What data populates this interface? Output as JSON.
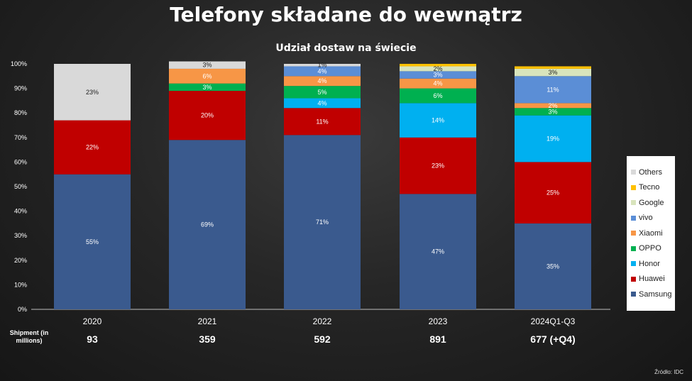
{
  "title": "Telefony składane do wewnątrz",
  "subtitle": "Udział dostaw na świecie",
  "shipment_label": "Shipment (in millions)",
  "source": "Źródło: IDC",
  "colors": {
    "Samsung": "#3a5a8e",
    "Huawei": "#c00000",
    "Honor": "#00b0f0",
    "OPPO": "#00b050",
    "Xiaomi": "#f79646",
    "vivo": "#5b8ed6",
    "Google": "#d8e4bc",
    "Tecno": "#ffc000",
    "Others": "#d9d9d9"
  },
  "chart_data": {
    "type": "bar",
    "stacked": true,
    "categories": [
      "2020",
      "2021",
      "2022",
      "2023",
      "2024Q1-Q3"
    ],
    "shipments": [
      "93",
      "359",
      "592",
      "891",
      "677 (+Q4)"
    ],
    "ylim": [
      0,
      100
    ],
    "y_ticks": [
      "0%",
      "10%",
      "20%",
      "30%",
      "40%",
      "50%",
      "60%",
      "70%",
      "80%",
      "90%",
      "100%"
    ],
    "legend_position": "right",
    "series": [
      {
        "name": "Samsung",
        "values": [
          55,
          69,
          71,
          47,
          35
        ],
        "labels": [
          "55%",
          "69%",
          "71%",
          "47%",
          "35%"
        ]
      },
      {
        "name": "Huawei",
        "values": [
          22,
          20,
          11,
          23,
          25
        ],
        "labels": [
          "22%",
          "20%",
          "11%",
          "23%",
          "25%"
        ]
      },
      {
        "name": "Honor",
        "values": [
          0,
          0,
          4,
          14,
          19
        ],
        "labels": [
          "",
          "",
          "4%",
          "14%",
          "19%"
        ]
      },
      {
        "name": "OPPO",
        "values": [
          0,
          3,
          5,
          6,
          3
        ],
        "labels": [
          "",
          "3%",
          "5%",
          "6%",
          "3%"
        ]
      },
      {
        "name": "Xiaomi",
        "values": [
          0,
          6,
          4,
          4,
          2
        ],
        "labels": [
          "",
          "6%",
          "4%",
          "4%",
          "2%"
        ]
      },
      {
        "name": "vivo",
        "values": [
          0,
          0,
          4,
          3,
          11
        ],
        "labels": [
          "",
          "",
          "4%",
          "3%",
          "11%"
        ]
      },
      {
        "name": "Google",
        "values": [
          0,
          0,
          0,
          2,
          3
        ],
        "labels": [
          "",
          "",
          "",
          "2%",
          "3%"
        ]
      },
      {
        "name": "Tecno",
        "values": [
          0,
          0,
          0,
          1,
          1
        ],
        "labels": [
          "",
          "",
          "",
          "",
          ""
        ]
      },
      {
        "name": "Others",
        "values": [
          23,
          3,
          1,
          0,
          0
        ],
        "labels": [
          "23%",
          "3%",
          "1%",
          "",
          ""
        ]
      }
    ],
    "legend_order": [
      "Others",
      "Tecno",
      "Google",
      "vivo",
      "Xiaomi",
      "OPPO",
      "Honor",
      "Huawei",
      "Samsung"
    ]
  }
}
